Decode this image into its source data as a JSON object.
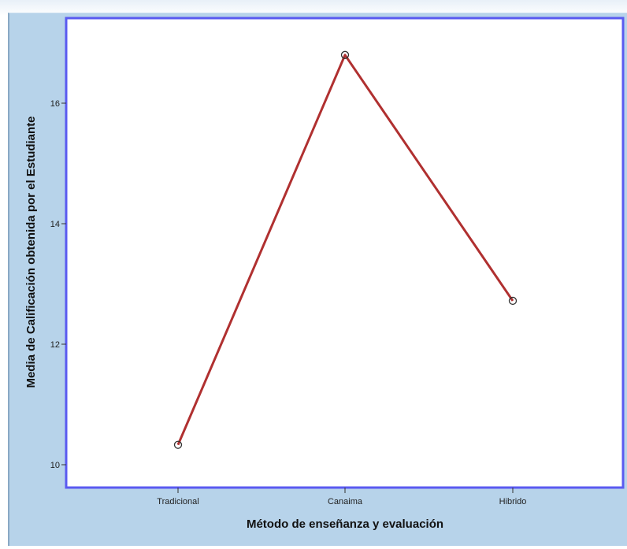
{
  "chart_data": {
    "type": "line",
    "categories": [
      "Tradicional",
      "Canaima",
      "Hibrido"
    ],
    "values": [
      10.33,
      16.8,
      12.72
    ],
    "xlabel": "Método de enseñanza y evaluación",
    "ylabel": "Media de Calificación obtenida por el Estudiante",
    "ylim": [
      10,
      17
    ],
    "yticks": [
      10,
      12,
      14,
      16
    ],
    "grid": false,
    "line_color": "#b03030",
    "plot_border_color": "#5a5af0",
    "plot_background": "#ffffff",
    "panel_background": "#b7d3ea"
  }
}
